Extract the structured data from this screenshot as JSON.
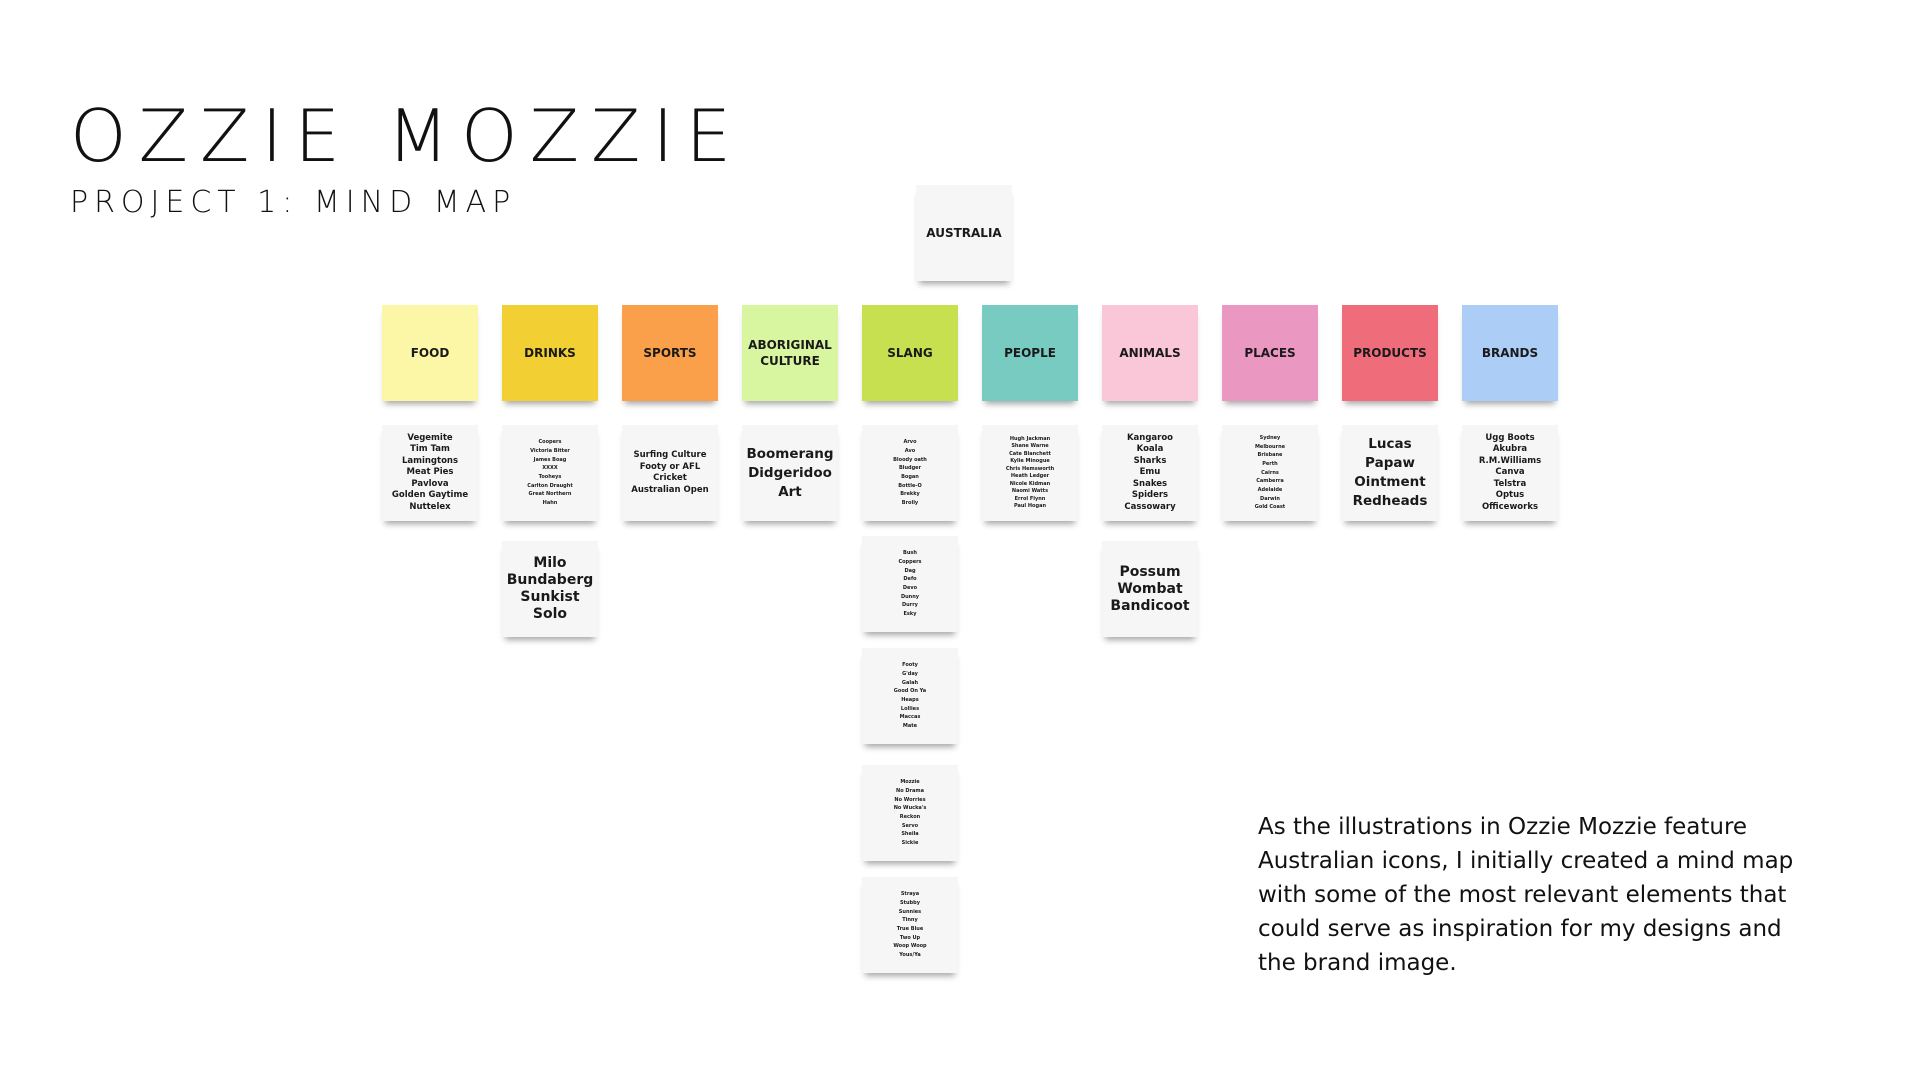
{
  "title": "OZZIE MOZZIE",
  "subtitle": "PROJECT 1: MIND MAP",
  "root": "AUSTRALIA",
  "categories": [
    {
      "label": "FOOD",
      "color": "#fbf7a6"
    },
    {
      "label": "DRINKS",
      "color": "#f2d033"
    },
    {
      "label": "SPORTS",
      "color": "#fba04a"
    },
    {
      "label": "ABORIGINAL\nCULTURE",
      "color": "#d8f5a0"
    },
    {
      "label": "SLANG",
      "color": "#c6e04f"
    },
    {
      "label": "PEOPLE",
      "color": "#77cbc1"
    },
    {
      "label": "ANIMALS",
      "color": "#f9c7d7"
    },
    {
      "label": "PLACES",
      "color": "#ea97c1"
    },
    {
      "label": "PRODUCTS",
      "color": "#ef6d7b"
    },
    {
      "label": "BRANDS",
      "color": "#abcdf6"
    }
  ],
  "notes": {
    "food": "Vegemite\nTim Tam\nLamingtons\nMeat Pies\nPavlova\nGolden Gaytime\nNuttelex",
    "drinks_1": "Coopers\nVictoria Bitter\nJames Boag\nXXXX\nTooheys\nCarlton Draught\nGreat Northern\nHahn",
    "drinks_2": "Milo\nBundaberg\nSunkist\nSolo",
    "sports": "Surfing Culture\nFooty or AFL\nCricket\nAustralian Open",
    "aboriginal": "Boomerang\nDidgeridoo\nArt",
    "slang_1": "Arvo\nAvo\nBloody oath\nBludger\nBogan\nBottle-O\nBrekky\nBrolly",
    "slang_2": "Bush\nCoppers\nDag\nDefo\nDevo\nDunny\nDurry\nEsky",
    "slang_3": "Footy\nG'day\nGalah\nGood On Ya\nHeaps\nLollies\nMaccas\nMate",
    "slang_4": "Mozzie\nNo Drama\nNo Worries\nNo Wucka's\nReckon\nServo\nSheila\nSickie",
    "slang_5": "Straya\nStubby\nSunnies\nTinny\nTrue Blue\nTwo Up\nWoop Woop\nYous/Ya",
    "people": "Hugh Jackman\nShane Warne\nCate Blanchett\nKylie Minogue\nChris Hemsworth\nHeath Ledger\nNicole Kidman\nNaomi Watts\nErrol Flynn\nPaul Hogan",
    "animals_1": "Kangaroo\nKoala\nSharks\nEmu\nSnakes\nSpiders\nCassowary",
    "animals_2": "Possum\nWombat\nBandicoot",
    "places": "Sydney\nMelbourne\nBrisbane\nPerth\nCairns\nCamberra\nAdelaide\nDarwin\nGold Coast",
    "products": "Lucas\nPapaw\nOintment\nRedheads",
    "brands": "Ugg Boots\nAkubra\nR.M.Williams\nCanva\nTelstra\nOptus\nOfficeworks"
  },
  "description": "As the illustrations in Ozzie Mozzie feature Australian icons, I initially created a mind map with some of the most relevant elements that could serve as inspiration for my designs and the brand image."
}
